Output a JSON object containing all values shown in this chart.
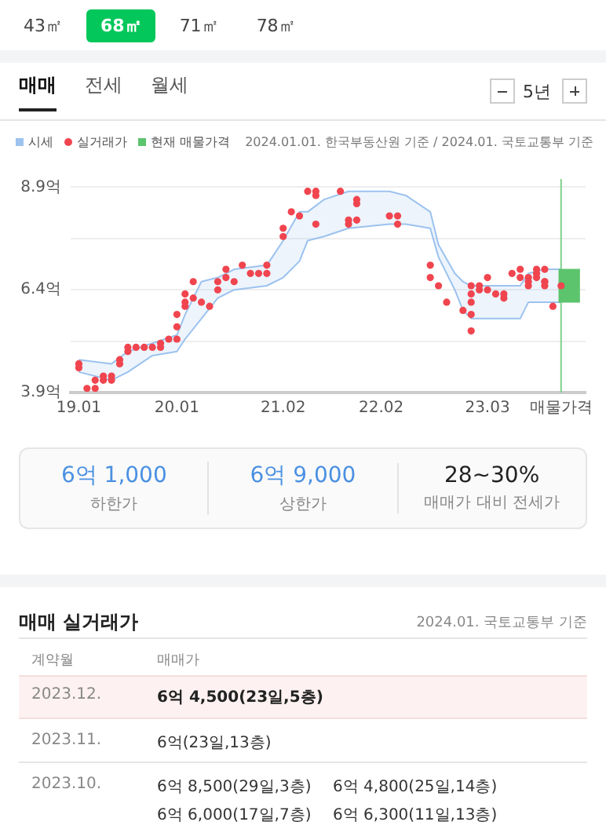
{
  "chart_data": [
    {
      "type": "other",
      "annotations": [
        "43㎡",
        "68㎡",
        "71㎡",
        "78㎡"
      ]
    },
    {
      "type": "scatter",
      "legend": "top left",
      "grid": "y",
      "annotations": [
        "매매",
        "전세",
        "월세",
        "5년",
        "2024.01.01. 한국부동산원 기준 / 2024.01. 국토교통부 기준"
      ],
      "xlim": [
        "2018-12",
        "2024-03"
      ],
      "xticks": [
        {
          "value": "2019-01",
          "label": "19.01"
        },
        {
          "value": "2020-01",
          "label": "20.01"
        },
        {
          "value": "2021-02",
          "label": "21.02"
        },
        {
          "value": "2022-02",
          "label": "22.02"
        },
        {
          "value": "2023-03",
          "label": "23.03"
        },
        {
          "value": "2023-12",
          "label": "매물가격"
        }
      ],
      "ylim": [
        3.9,
        9.1
      ],
      "yticks": [
        {
          "value": 3.9,
          "label": "3.9억"
        },
        {
          "value": 5.15,
          "label": null
        },
        {
          "value": 6.4,
          "label": "6.4억"
        },
        {
          "value": 7.65,
          "label": null
        },
        {
          "value": 8.9,
          "label": "8.9억"
        }
      ],
      "ref_lines": [
        {
          "axis": "x",
          "value": "2023-12",
          "color": "#7ed08a"
        }
      ],
      "series": [
        {
          "type": "line",
          "marker": "none",
          "color": "#9cc2ee",
          "x": [
            "2019-01",
            "2019-05",
            "2019-07",
            "2019-10",
            "2020-01",
            "2020-02",
            "2020-04",
            "2020-06",
            "2020-08",
            "2020-12",
            "2021-02",
            "2021-04",
            "2021-05",
            "2021-07",
            "2021-10",
            "2022-03",
            "2022-05",
            "2022-08",
            "2022-09",
            "2022-11",
            "2022-12",
            "2023-01",
            "2023-07",
            "2023-08",
            "2023-10",
            "2023-12"
          ],
          "values": [
            4.4,
            4.2,
            4.4,
            4.8,
            4.9,
            5.2,
            5.7,
            6.2,
            6.4,
            6.5,
            6.7,
            7.1,
            7.6,
            7.7,
            7.9,
            8.0,
            8.0,
            7.9,
            7.2,
            6.4,
            5.9,
            5.7,
            5.7,
            6.1,
            6.1,
            6.1
          ]
        },
        {
          "name": "시세",
          "type": "area",
          "marker": "none",
          "color": "#9cc2ee",
          "x": [
            "2019-01",
            "2019-05",
            "2019-07",
            "2019-10",
            "2020-01",
            "2020-02",
            "2020-04",
            "2020-06",
            "2020-08",
            "2020-12",
            "2021-02",
            "2021-04",
            "2021-05",
            "2021-07",
            "2021-10",
            "2022-03",
            "2022-05",
            "2022-08",
            "2022-09",
            "2022-11",
            "2022-12",
            "2023-01",
            "2023-07",
            "2023-08",
            "2023-10",
            "2023-12"
          ],
          "values": [
            4.7,
            4.6,
            4.9,
            5.1,
            5.3,
            5.8,
            6.6,
            6.7,
            6.9,
            7.0,
            7.6,
            8.3,
            8.3,
            8.6,
            8.8,
            8.8,
            8.7,
            8.3,
            7.5,
            6.8,
            6.6,
            6.5,
            6.5,
            6.8,
            6.9,
            6.9
          ]
        },
        {
          "name": "실거래가",
          "type": "scatter",
          "marker": "circle",
          "color": "#f0454f",
          "x": [
            "2019-01",
            "2019-01",
            "2019-02",
            "2019-03",
            "2019-03",
            "2019-04",
            "2019-04",
            "2019-05",
            "2019-05",
            "2019-06",
            "2019-06",
            "2019-07",
            "2019-07",
            "2019-08",
            "2019-09",
            "2019-10",
            "2019-11",
            "2019-11",
            "2019-12",
            "2020-01",
            "2020-01",
            "2020-01",
            "2020-02",
            "2020-02",
            "2020-02",
            "2020-03",
            "2020-03",
            "2020-04",
            "2020-05",
            "2020-06",
            "2020-06",
            "2020-07",
            "2020-07",
            "2020-08",
            "2020-09",
            "2020-10",
            "2020-11",
            "2020-12",
            "2020-12",
            "2021-02",
            "2021-02",
            "2021-03",
            "2021-04",
            "2021-05",
            "2021-06",
            "2021-06",
            "2021-06",
            "2021-09",
            "2021-10",
            "2021-10",
            "2021-11",
            "2021-11",
            "2021-11",
            "2022-03",
            "2022-04",
            "2022-04",
            "2022-08",
            "2022-08",
            "2022-09",
            "2022-10",
            "2022-12",
            "2023-01",
            "2023-01",
            "2023-01",
            "2023-01",
            "2023-01",
            "2023-02",
            "2023-02",
            "2023-03",
            "2023-03",
            "2023-04",
            "2023-05",
            "2023-05",
            "2023-06",
            "2023-07",
            "2023-07",
            "2023-08",
            "2023-08",
            "2023-08",
            "2023-09",
            "2023-09",
            "2023-09",
            "2023-10",
            "2023-10",
            "2023-10",
            "2023-10",
            "2023-11",
            "2023-12"
          ],
          "values": [
            4.6,
            4.5,
            4.0,
            4.0,
            4.2,
            4.2,
            4.3,
            4.3,
            4.2,
            4.7,
            4.6,
            5.0,
            4.9,
            5.0,
            5.0,
            5.0,
            5.1,
            5.0,
            5.2,
            5.8,
            5.5,
            5.2,
            6.3,
            6.1,
            6.0,
            6.6,
            6.2,
            6.1,
            6.0,
            6.6,
            6.4,
            6.9,
            6.7,
            6.6,
            7.0,
            6.8,
            6.8,
            7.0,
            6.8,
            7.9,
            7.7,
            8.3,
            8.2,
            8.8,
            8.8,
            8.7,
            8.0,
            8.8,
            8.1,
            8.0,
            8.6,
            8.5,
            8.1,
            8.2,
            8.2,
            8.0,
            7.0,
            6.7,
            6.5,
            6.1,
            5.9,
            6.5,
            6.3,
            6.1,
            5.8,
            5.4,
            6.5,
            6.4,
            6.7,
            6.4,
            6.3,
            6.3,
            6.2,
            6.8,
            6.9,
            6.7,
            6.7,
            6.6,
            6.5,
            6.9,
            6.8,
            6.7,
            6.9,
            6.5,
            6.6,
            6.6,
            6.0,
            6.5
          ]
        },
        {
          "name": "현재 매물가격",
          "type": "bar",
          "color": "#5cc46d",
          "x": [
            "2024-01"
          ],
          "base": [
            6.1
          ],
          "values": [
            0.8
          ]
        }
      ]
    },
    {
      "type": "other",
      "annotations": [
        "6억 1,000",
        "하한가",
        "6억 9,000",
        "상한가",
        "28~30%",
        "매매가 대비 전세가"
      ]
    },
    {
      "type": "other",
      "title": "매매 실거래가",
      "annotations": [
        "2024.01. 국토교통부 기준",
        "계약월",
        "매매가",
        "2023.12.",
        "6억 4,500(23일,5층)",
        "2023.11.",
        "6억(23일,13층)",
        "2023.10.",
        "6억 8,500(29일,3층)",
        "6억 4,800(25일,14층)",
        "6억 6,000(17일,7층)",
        "6억 6,300(11일,13층)"
      ]
    }
  ]
}
